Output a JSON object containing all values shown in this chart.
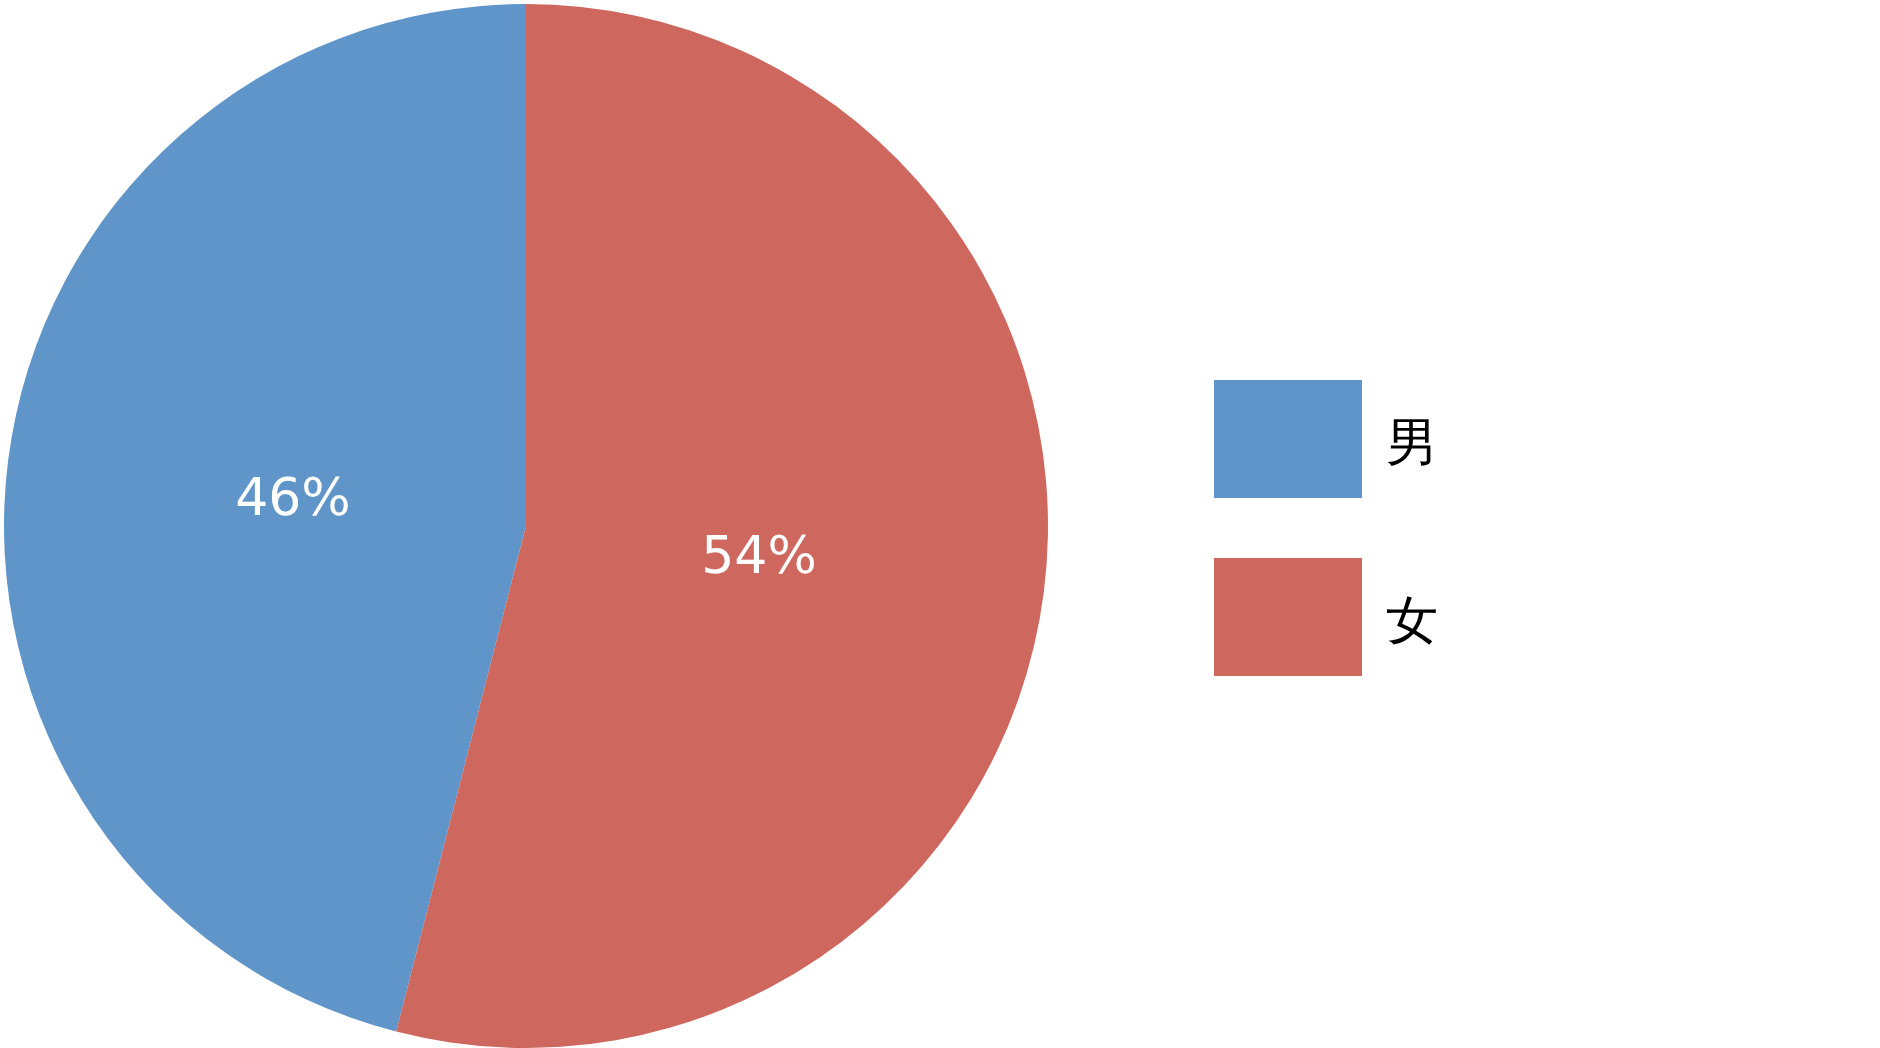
{
  "chart_data": {
    "type": "pie",
    "categories": [
      "男",
      "女"
    ],
    "values": [
      46,
      54
    ],
    "colors": [
      "#5f95c9",
      "#ce675e"
    ],
    "value_labels": [
      "46%",
      "54%"
    ],
    "legend": "right"
  }
}
